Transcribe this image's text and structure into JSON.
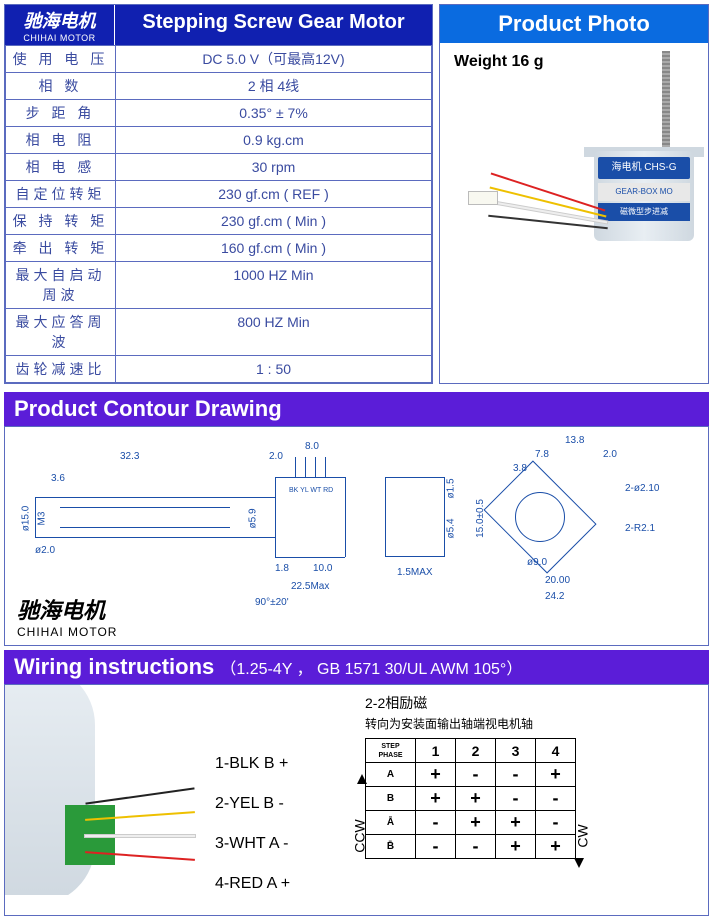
{
  "brand": {
    "cn": "驰海电机",
    "en": "CHIHAI MOTOR"
  },
  "spec_title": "Stepping Screw Gear Motor",
  "spec_rows": [
    {
      "label": "使 用 电 压",
      "value": "DC 5.0 V（可最高12V)"
    },
    {
      "label": "相        数",
      "value": "2 相 4线"
    },
    {
      "label": "步  距  角",
      "value": "0.35° ± 7%"
    },
    {
      "label": "相  电  阻",
      "value": "0.9 kg.cm"
    },
    {
      "label": "相  电  感",
      "value": "30 rpm"
    },
    {
      "label": "自定位转矩",
      "value": "230 gf.cm ( REF )"
    },
    {
      "label": "保 持 转 矩",
      "value": "230 gf.cm ( Min )"
    },
    {
      "label": "牵 出 转 矩",
      "value": "160 gf.cm ( Min )"
    },
    {
      "label": "最大自启动周波",
      "value": "1000 HZ Min"
    },
    {
      "label": "最大应答周波",
      "value": "800 HZ Min"
    },
    {
      "label": "齿轮减速比",
      "value": "1 : 50"
    }
  ],
  "photo": {
    "title": "Product Photo",
    "weight": "Weight 16 g",
    "body_label_a": "海电机 CHS-G",
    "body_label_b": "GEAR-BOX MO",
    "body_label_c": "磁微型步进减"
  },
  "contour": {
    "title": "Product Contour Drawing",
    "dims": {
      "d1": "32.3",
      "d2": "2.0",
      "d3": "8.0",
      "d4": "3.6",
      "d5": "ø15.0",
      "d6": "M3",
      "d7": "ø2.0",
      "d8": "ø5.9",
      "d9": "1.8",
      "d10": "10.0",
      "d11": "22.5Max",
      "d12": "90°±20'",
      "d13": "ø1.5",
      "d14": "ø5.4",
      "d15": "1.5MAX",
      "d16": "15.0±0.5",
      "d17": "13.8",
      "d18": "7.8",
      "d19": "3.8",
      "d20": "2.0",
      "d21": "ø9.0",
      "d22": "20.00",
      "d23": "24.2",
      "d24": "2-ø2.10",
      "d25": "2-R2.1",
      "pins": "BK YL WT RD"
    }
  },
  "wiring": {
    "title": "Wiring instructions",
    "sub": "（1.25-4Y ， GB 1571 30/UL AWM 105°）",
    "legend": [
      "1-BLK B +",
      "2-YEL B -",
      "3-WHT A -",
      "4-RED A +"
    ],
    "step_title": "2-2相励磁",
    "step_sub": "转向为安装面输出轴端视电机轴",
    "steps": [
      "1",
      "2",
      "3",
      "4"
    ],
    "phases": [
      "A",
      "B",
      "Ā",
      "B̄"
    ],
    "matrix": [
      [
        "+",
        "-",
        "-",
        "+"
      ],
      [
        "+",
        "+",
        "-",
        "-"
      ],
      [
        "-",
        "+",
        "+",
        "-"
      ],
      [
        "-",
        "-",
        "+",
        "+"
      ]
    ],
    "ccw": "CCW",
    "cw": "CW",
    "corner": "STEP\nPHASE"
  }
}
